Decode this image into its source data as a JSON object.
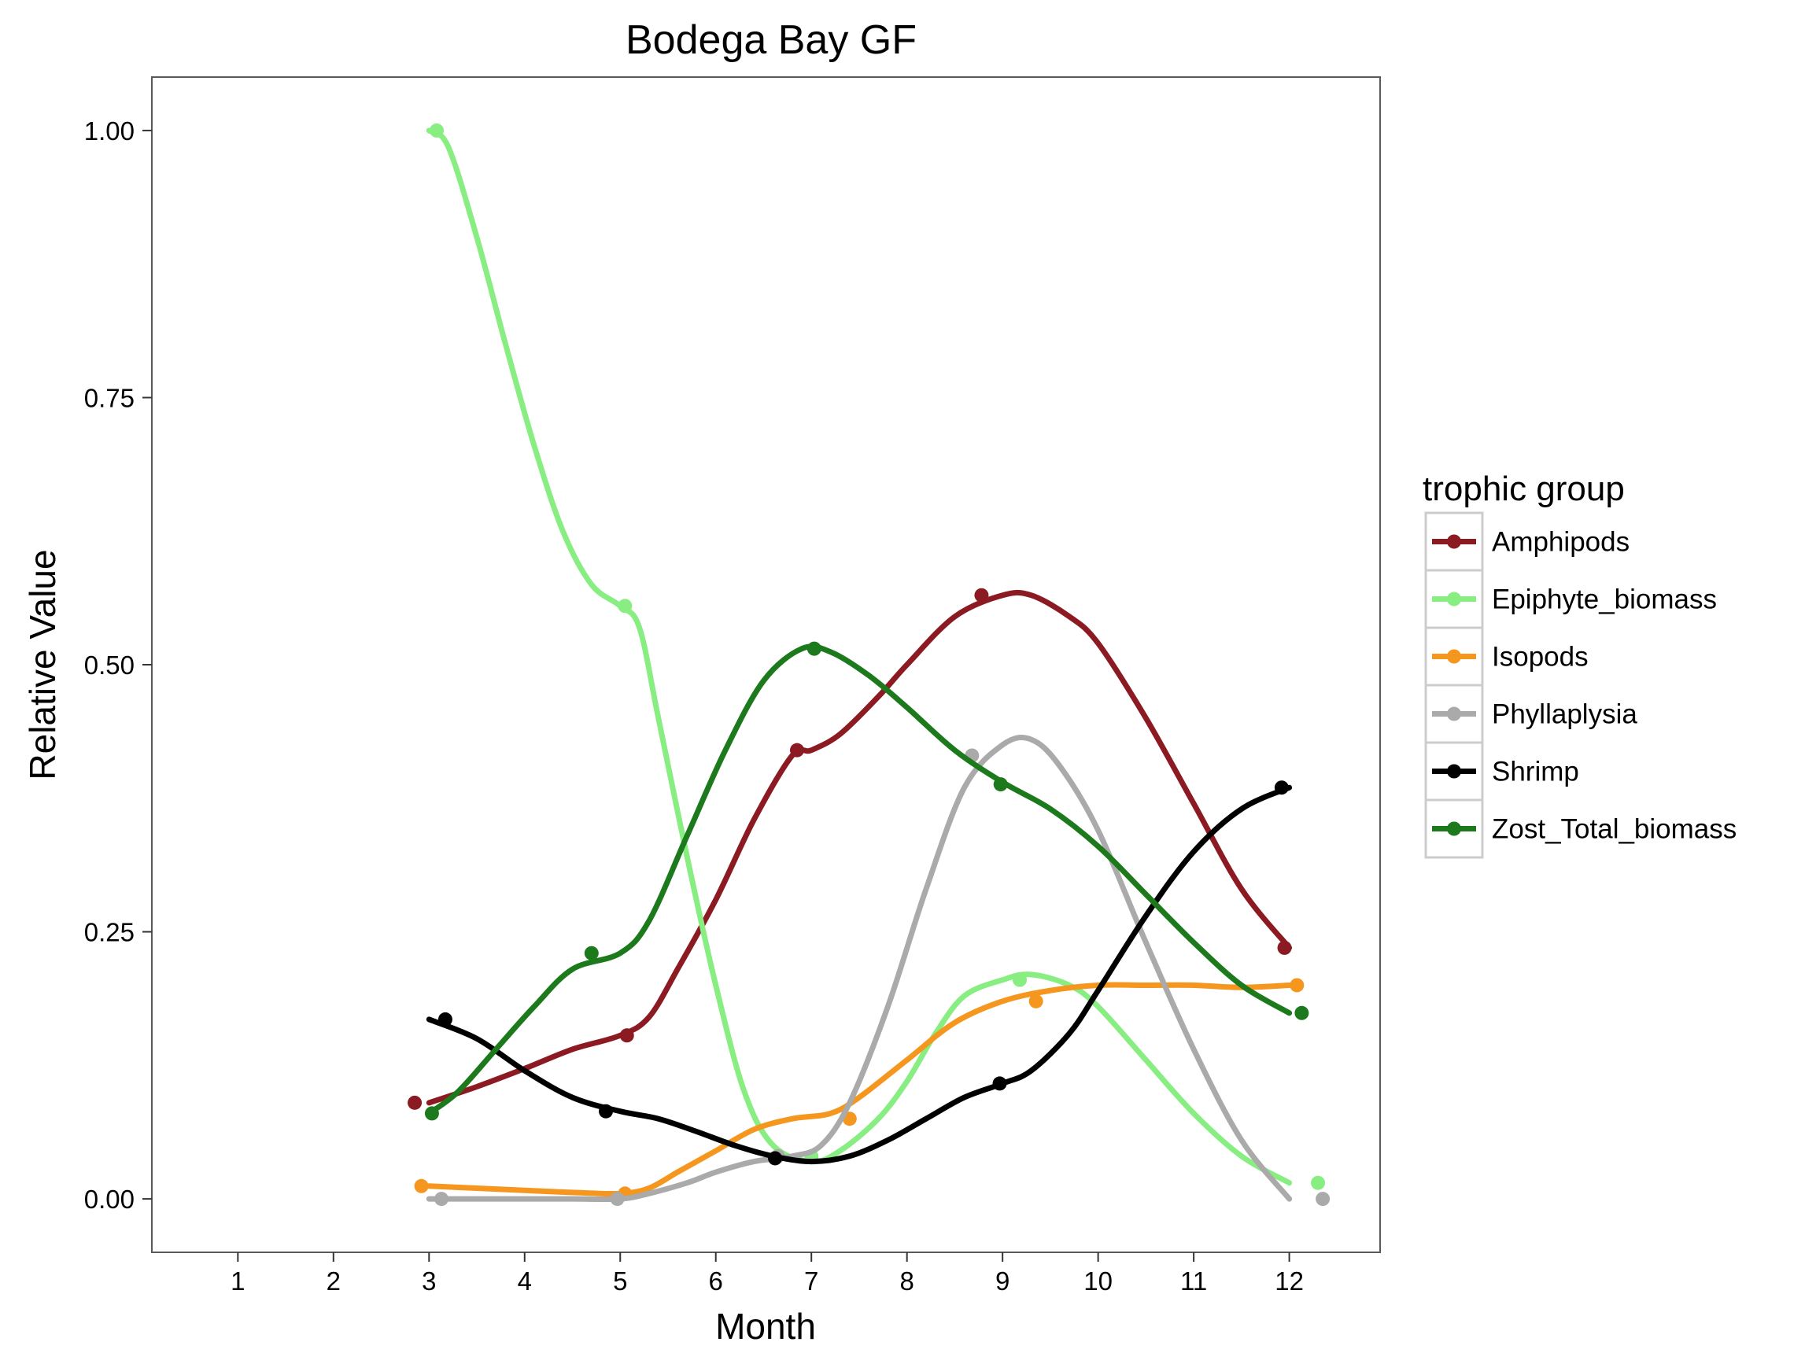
{
  "chart_data": {
    "type": "line",
    "title": "Bodega Bay GF",
    "xlabel": "Month",
    "ylabel": "Relative Value",
    "x_ticks": [
      1,
      2,
      3,
      4,
      5,
      6,
      7,
      8,
      9,
      10,
      11,
      12
    ],
    "x_tick_labels": [
      "1",
      "2",
      "3",
      "4",
      "5",
      "6",
      "7",
      "8",
      "9",
      "10",
      "11",
      "12"
    ],
    "y_ticks": [
      0,
      0.25,
      0.5,
      0.75,
      1
    ],
    "y_tick_labels": [
      "0.00",
      "0.25",
      "0.50",
      "0.75",
      "1.00"
    ],
    "xlim": [
      0.1,
      12.95
    ],
    "ylim": [
      -0.05,
      1.05
    ],
    "grid": false,
    "legend_title": "trophic group",
    "legend_position": "right",
    "series": [
      {
        "name": "Amphipods",
        "color": "#8b1a22",
        "points": [
          [
            2.85,
            0.09
          ],
          [
            5.07,
            0.153
          ],
          [
            6.85,
            0.42
          ],
          [
            8.78,
            0.565
          ],
          [
            11.95,
            0.235
          ]
        ],
        "curve": [
          [
            3.0,
            0.09
          ],
          [
            3.5,
            0.105
          ],
          [
            4.0,
            0.122
          ],
          [
            4.5,
            0.14
          ],
          [
            5.0,
            0.153
          ],
          [
            5.3,
            0.17
          ],
          [
            5.6,
            0.215
          ],
          [
            6.0,
            0.28
          ],
          [
            6.4,
            0.355
          ],
          [
            6.8,
            0.415
          ],
          [
            7.0,
            0.42
          ],
          [
            7.3,
            0.435
          ],
          [
            7.7,
            0.47
          ],
          [
            8.0,
            0.5
          ],
          [
            8.5,
            0.545
          ],
          [
            9.0,
            0.565
          ],
          [
            9.3,
            0.565
          ],
          [
            9.7,
            0.545
          ],
          [
            10.0,
            0.52
          ],
          [
            10.5,
            0.45
          ],
          [
            11.0,
            0.37
          ],
          [
            11.5,
            0.29
          ],
          [
            12.0,
            0.235
          ]
        ]
      },
      {
        "name": "Epiphyte_biomass",
        "color": "#88ee82",
        "points": [
          [
            3.08,
            1.0
          ],
          [
            5.05,
            0.555
          ],
          [
            7.0,
            0.04
          ],
          [
            9.18,
            0.205
          ],
          [
            12.3,
            0.015
          ]
        ],
        "curve": [
          [
            3.0,
            1.0
          ],
          [
            3.2,
            0.985
          ],
          [
            3.5,
            0.9
          ],
          [
            3.8,
            0.8
          ],
          [
            4.1,
            0.705
          ],
          [
            4.4,
            0.625
          ],
          [
            4.7,
            0.575
          ],
          [
            5.0,
            0.555
          ],
          [
            5.2,
            0.535
          ],
          [
            5.4,
            0.45
          ],
          [
            5.7,
            0.32
          ],
          [
            6.0,
            0.2
          ],
          [
            6.3,
            0.1
          ],
          [
            6.6,
            0.05
          ],
          [
            7.0,
            0.035
          ],
          [
            7.3,
            0.045
          ],
          [
            7.7,
            0.075
          ],
          [
            8.0,
            0.11
          ],
          [
            8.3,
            0.155
          ],
          [
            8.6,
            0.19
          ],
          [
            9.0,
            0.205
          ],
          [
            9.3,
            0.21
          ],
          [
            9.7,
            0.2
          ],
          [
            10.0,
            0.18
          ],
          [
            10.5,
            0.13
          ],
          [
            11.0,
            0.08
          ],
          [
            11.5,
            0.04
          ],
          [
            12.0,
            0.015
          ]
        ]
      },
      {
        "name": "Isopods",
        "color": "#f5961e",
        "points": [
          [
            2.92,
            0.012
          ],
          [
            5.05,
            0.005
          ],
          [
            7.4,
            0.075
          ],
          [
            9.35,
            0.185
          ],
          [
            12.08,
            0.2
          ]
        ],
        "curve": [
          [
            3.0,
            0.012
          ],
          [
            3.5,
            0.01
          ],
          [
            4.0,
            0.008
          ],
          [
            4.5,
            0.006
          ],
          [
            5.0,
            0.005
          ],
          [
            5.3,
            0.01
          ],
          [
            5.6,
            0.025
          ],
          [
            6.0,
            0.045
          ],
          [
            6.4,
            0.065
          ],
          [
            6.8,
            0.075
          ],
          [
            7.2,
            0.08
          ],
          [
            7.5,
            0.095
          ],
          [
            8.0,
            0.13
          ],
          [
            8.5,
            0.165
          ],
          [
            9.0,
            0.185
          ],
          [
            9.5,
            0.195
          ],
          [
            10.0,
            0.2
          ],
          [
            10.5,
            0.2
          ],
          [
            11.0,
            0.2
          ],
          [
            11.5,
            0.198
          ],
          [
            12.0,
            0.2
          ]
        ]
      },
      {
        "name": "Phyllaplysia",
        "color": "#aaaaaa",
        "points": [
          [
            3.13,
            0.0
          ],
          [
            4.97,
            0.0
          ],
          [
            6.65,
            0.04
          ],
          [
            8.68,
            0.415
          ],
          [
            12.35,
            0.0
          ]
        ],
        "curve": [
          [
            3.0,
            0.0
          ],
          [
            3.5,
            0.0
          ],
          [
            4.0,
            0.0
          ],
          [
            4.5,
            0.0
          ],
          [
            5.0,
            0.0
          ],
          [
            5.3,
            0.005
          ],
          [
            5.7,
            0.015
          ],
          [
            6.0,
            0.025
          ],
          [
            6.4,
            0.035
          ],
          [
            6.8,
            0.04
          ],
          [
            7.1,
            0.05
          ],
          [
            7.4,
            0.09
          ],
          [
            7.8,
            0.18
          ],
          [
            8.2,
            0.29
          ],
          [
            8.6,
            0.385
          ],
          [
            9.0,
            0.425
          ],
          [
            9.3,
            0.43
          ],
          [
            9.6,
            0.405
          ],
          [
            10.0,
            0.345
          ],
          [
            10.5,
            0.24
          ],
          [
            11.0,
            0.14
          ],
          [
            11.5,
            0.055
          ],
          [
            12.0,
            0.0
          ]
        ]
      },
      {
        "name": "Shrimp",
        "color": "#000000",
        "points": [
          [
            3.17,
            0.168
          ],
          [
            4.85,
            0.082
          ],
          [
            6.62,
            0.038
          ],
          [
            8.97,
            0.108
          ],
          [
            11.92,
            0.385
          ]
        ],
        "curve": [
          [
            3.0,
            0.168
          ],
          [
            3.5,
            0.15
          ],
          [
            4.0,
            0.12
          ],
          [
            4.5,
            0.095
          ],
          [
            5.0,
            0.082
          ],
          [
            5.4,
            0.075
          ],
          [
            5.8,
            0.063
          ],
          [
            6.2,
            0.05
          ],
          [
            6.6,
            0.04
          ],
          [
            7.0,
            0.035
          ],
          [
            7.4,
            0.04
          ],
          [
            7.8,
            0.055
          ],
          [
            8.2,
            0.075
          ],
          [
            8.6,
            0.095
          ],
          [
            9.0,
            0.108
          ],
          [
            9.3,
            0.12
          ],
          [
            9.7,
            0.155
          ],
          [
            10.0,
            0.195
          ],
          [
            10.5,
            0.265
          ],
          [
            11.0,
            0.325
          ],
          [
            11.5,
            0.365
          ],
          [
            12.0,
            0.385
          ]
        ]
      },
      {
        "name": "Zost_Total_biomass",
        "color": "#1c7a1c",
        "points": [
          [
            3.03,
            0.08
          ],
          [
            4.7,
            0.23
          ],
          [
            7.03,
            0.515
          ],
          [
            8.98,
            0.388
          ],
          [
            12.13,
            0.174
          ]
        ],
        "curve": [
          [
            3.0,
            0.08
          ],
          [
            3.3,
            0.1
          ],
          [
            3.7,
            0.14
          ],
          [
            4.1,
            0.18
          ],
          [
            4.5,
            0.215
          ],
          [
            5.0,
            0.23
          ],
          [
            5.3,
            0.26
          ],
          [
            5.7,
            0.34
          ],
          [
            6.1,
            0.42
          ],
          [
            6.5,
            0.485
          ],
          [
            6.9,
            0.515
          ],
          [
            7.2,
            0.512
          ],
          [
            7.6,
            0.49
          ],
          [
            8.0,
            0.46
          ],
          [
            8.5,
            0.42
          ],
          [
            9.0,
            0.39
          ],
          [
            9.5,
            0.365
          ],
          [
            10.0,
            0.33
          ],
          [
            10.5,
            0.285
          ],
          [
            11.0,
            0.24
          ],
          [
            11.5,
            0.2
          ],
          [
            12.0,
            0.174
          ]
        ]
      }
    ]
  }
}
